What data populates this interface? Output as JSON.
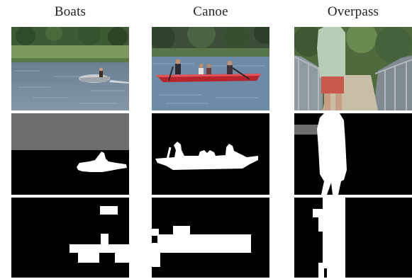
{
  "columns": [
    {
      "key": "boats",
      "title": "Boats"
    },
    {
      "key": "canoe",
      "title": "Canoe"
    },
    {
      "key": "overpass",
      "title": "Overpass"
    }
  ],
  "colors": {
    "background": "#ffffff",
    "mask_foreground": "#ffffff",
    "mask_background": "#000000",
    "mask_uncertain": "#6e6e6e"
  }
}
